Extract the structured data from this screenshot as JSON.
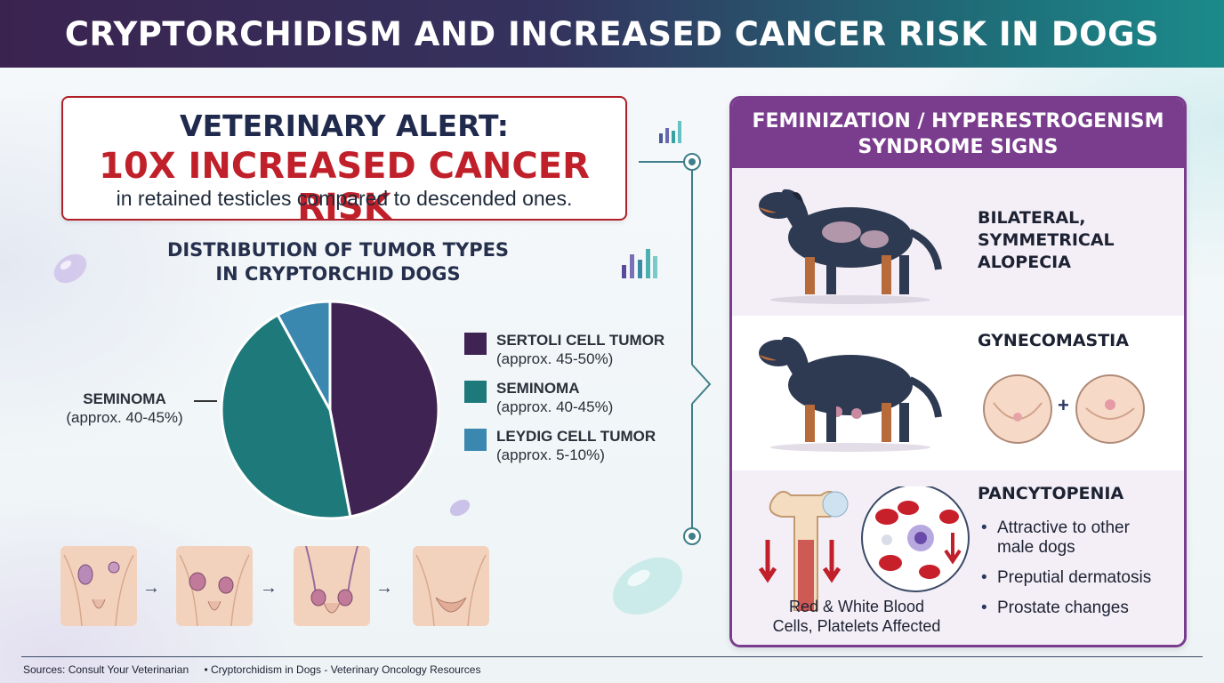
{
  "header": {
    "title": "CRYPTORCHIDISM AND INCREASED CANCER RISK IN DOGS"
  },
  "alert": {
    "line1": "VETERINARY ALERT:",
    "line2": "10X INCREASED CANCER RISK",
    "line3": "in retained testicles compared to descended ones."
  },
  "chart_data": {
    "type": "pie",
    "title": "DISTRIBUTION OF TUMOR TYPES IN CRYPTORCHID DOGS",
    "title_lines": [
      "DISTRIBUTION OF TUMOR TYPES",
      "IN CRYPTORCHID DOGS"
    ],
    "categories": [
      "SERTOLI CELL TUMOR",
      "SEMINOMA",
      "LEYDIG CELL TUMOR"
    ],
    "values": [
      47,
      45,
      8
    ],
    "ranges": [
      "(approx. 45-50%)",
      "(approx. 40-45%)",
      "(approx. 5-10%)"
    ],
    "colors": [
      "#3f2352",
      "#1e7a7a",
      "#3a87b0"
    ],
    "legend_position": "right",
    "callout": {
      "name": "SEMINOMA",
      "range": "(approx. 40-45%)"
    }
  },
  "panel": {
    "title_lines": [
      "FEMINIZATION / HYPERESTROGENISM",
      "SYNDROME SIGNS"
    ],
    "sign1": [
      "BILATERAL,",
      "SYMMETRICAL",
      "ALOPECIA"
    ],
    "sign2": "GYNECOMASTIA",
    "sign3": "PANCYTOPENIA",
    "sign3_bullets": [
      "Attractive to other male dogs",
      "Preputial dermatosis",
      "Prostate changes"
    ],
    "blood_caption": [
      "Red & White Blood",
      "Cells, Platelets Affected"
    ],
    "plus": "+"
  },
  "footer": {
    "items": [
      "Sources: Consult Your Veterinarian",
      "• Cryptorchidism in Dogs - Veterinary Oncology Resources"
    ]
  },
  "colors": {
    "accent_purple": "#7a3d8e",
    "alert_red": "#c0202a",
    "teal": "#1e7a7a"
  }
}
